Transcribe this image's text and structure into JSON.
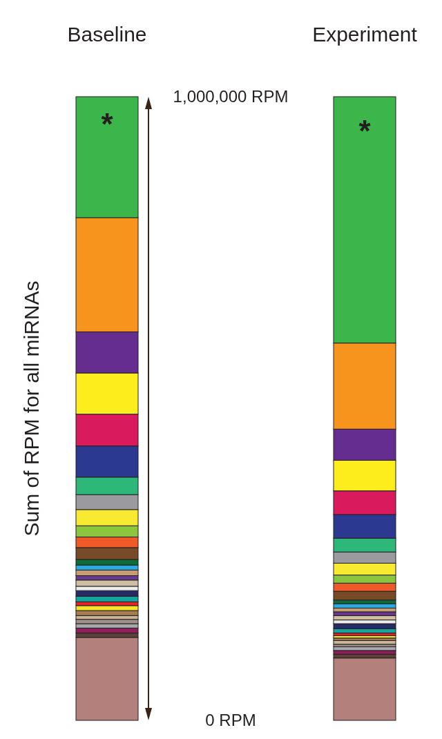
{
  "chart_data": {
    "type": "bar",
    "stacked": true,
    "ylabel": "Sum of RPM for all miRNAs",
    "categories": [
      "Baseline",
      "Experiment"
    ],
    "ylim": [
      0,
      1000000
    ],
    "yticks": [
      {
        "value": 1000000,
        "label": "1,000,000 RPM"
      },
      {
        "value": 0,
        "label": "0 RPM"
      }
    ],
    "annotations": [
      "*",
      "*"
    ],
    "series": [
      {
        "color": "#b4807c",
        "values": [
          133000,
          100000
        ]
      },
      {
        "color": "#5a4238",
        "values": [
          7000,
          6000
        ]
      },
      {
        "color": "#8e1f5b",
        "values": [
          8000,
          6000
        ]
      },
      {
        "color": "#a6a8ab",
        "values": [
          7000,
          6000
        ]
      },
      {
        "color": "#a0908a",
        "values": [
          7000,
          4000
        ]
      },
      {
        "color": "#c8b496",
        "values": [
          6000,
          6000
        ]
      },
      {
        "color": "#a57d52",
        "values": [
          8000,
          4000
        ]
      },
      {
        "color": "#f7e32a",
        "values": [
          8000,
          4000
        ]
      },
      {
        "color": "#e8242a",
        "values": [
          6000,
          4000
        ]
      },
      {
        "color": "#16a59c",
        "values": [
          9000,
          7000
        ]
      },
      {
        "color": "#262b67",
        "values": [
          9000,
          8000
        ]
      },
      {
        "color": "#ececec",
        "values": [
          7000,
          6000
        ]
      },
      {
        "color": "#cdbf9f",
        "values": [
          10000,
          7000
        ]
      },
      {
        "color": "#6a3a90",
        "values": [
          7000,
          6000
        ]
      },
      {
        "color": "#c79d72",
        "values": [
          9000,
          6000
        ]
      },
      {
        "color": "#29abe2",
        "values": [
          8000,
          7000
        ]
      },
      {
        "color": "#0f6b3a",
        "values": [
          9000,
          6000
        ]
      },
      {
        "color": "#774a28",
        "values": [
          19000,
          14000
        ]
      },
      {
        "color": "#f05a28",
        "values": [
          17000,
          13000
        ]
      },
      {
        "color": "#8cc63f",
        "values": [
          18000,
          13000
        ]
      },
      {
        "color": "#f7ea30",
        "values": [
          26000,
          19000
        ]
      },
      {
        "color": "#9b9b9f",
        "values": [
          24000,
          18000
        ]
      },
      {
        "color": "#2db87a",
        "values": [
          28000,
          22000
        ]
      },
      {
        "color": "#2b3990",
        "values": [
          50000,
          38000
        ]
      },
      {
        "color": "#d91a5c",
        "values": [
          51000,
          38000
        ]
      },
      {
        "color": "#fded1c",
        "values": [
          66000,
          49000
        ]
      },
      {
        "color": "#662d91",
        "values": [
          66000,
          50000
        ]
      },
      {
        "color": "#f7941d",
        "values": [
          183000,
          138000
        ]
      },
      {
        "color": "#3cb64a",
        "values": [
          194000,
          395000
        ]
      }
    ]
  }
}
